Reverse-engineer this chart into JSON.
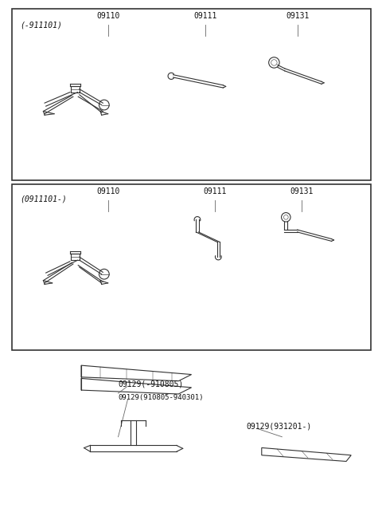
{
  "bg_color": "#ffffff",
  "border_color": "#333333",
  "text_color": "#111111",
  "figsize": [
    4.8,
    6.57
  ],
  "dpi": 100,
  "line_color": "#333333",
  "lw": 0.9
}
